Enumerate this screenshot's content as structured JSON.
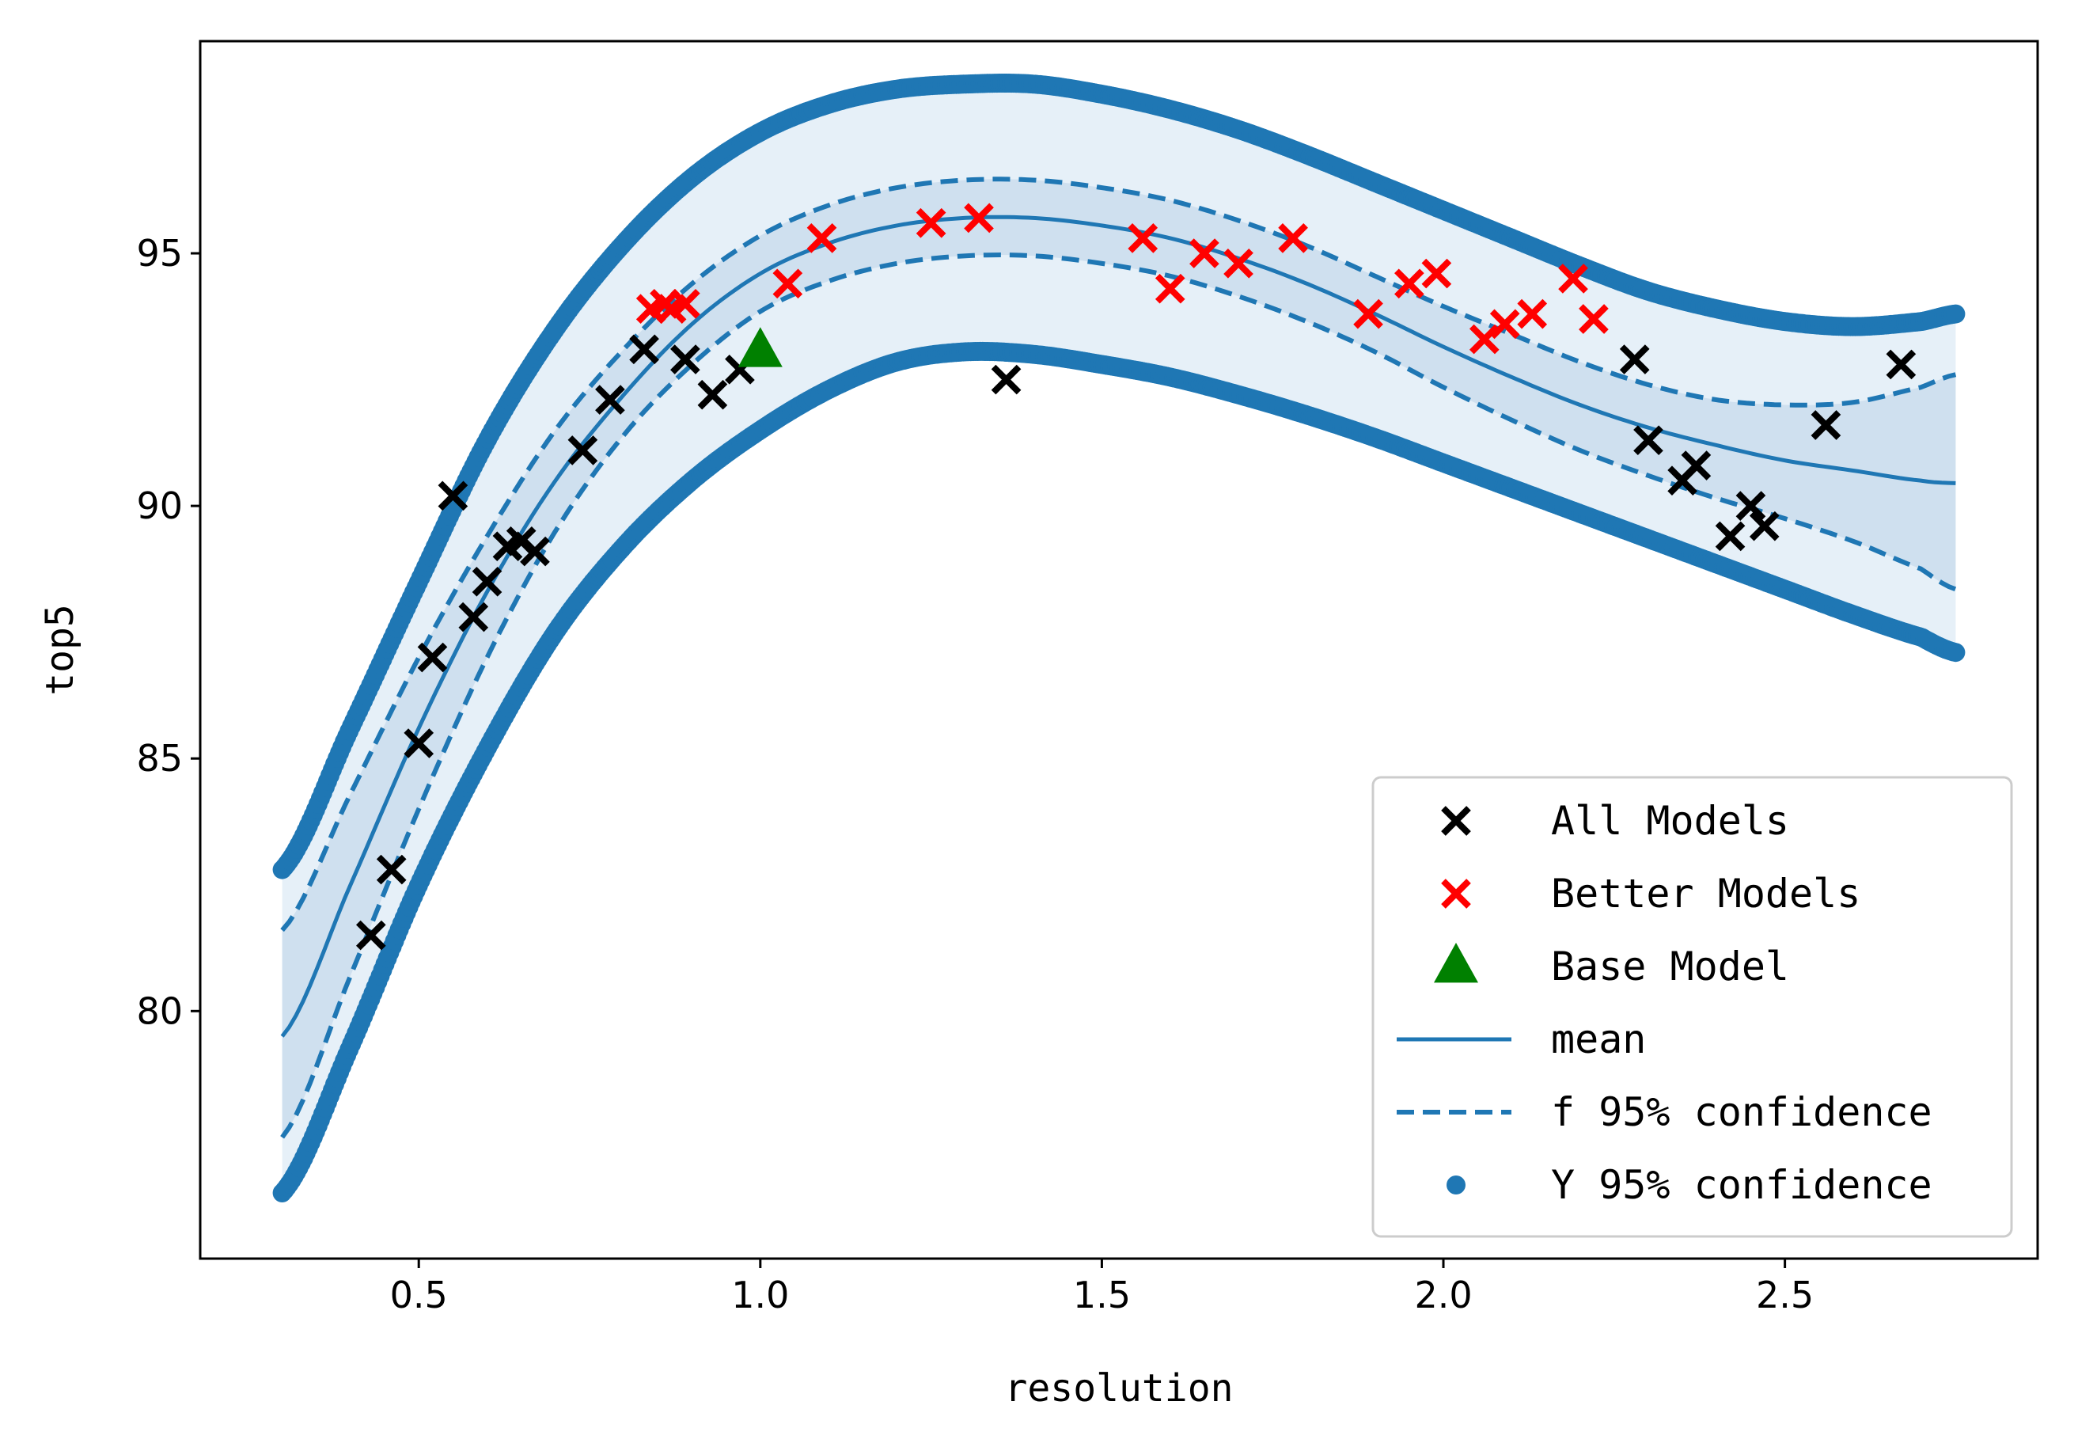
{
  "chart_data": {
    "type": "scatter",
    "title": "",
    "xlabel": "resolution",
    "ylabel": "top5",
    "xlim": [
      0.18,
      2.87
    ],
    "ylim": [
      75.1,
      99.2
    ],
    "xticks": [
      0.5,
      1.0,
      1.5,
      2.0,
      2.5
    ],
    "xtick_labels": [
      "0.5",
      "1.0",
      "1.5",
      "2.0",
      "2.5"
    ],
    "yticks": [
      80,
      85,
      90,
      95
    ],
    "ytick_labels": [
      "80",
      "85",
      "90",
      "95"
    ],
    "grid": false,
    "legend_position": "lower-right",
    "colors": {
      "all": "#000000",
      "better": "#ff0000",
      "base": "#008000",
      "curve": "#1f77b4",
      "band_outer": "#e6f0f8",
      "band_inner": "#cfe0ef"
    },
    "legend": [
      {
        "key": "all",
        "label": "All Models",
        "marker": "x"
      },
      {
        "key": "better",
        "label": "Better Models",
        "marker": "x"
      },
      {
        "key": "base",
        "label": "Base Model",
        "marker": "triangle"
      },
      {
        "key": "mean",
        "label": "mean",
        "marker": "line"
      },
      {
        "key": "f95",
        "label": "f 95% confidence",
        "marker": "dashed"
      },
      {
        "key": "y95",
        "label": "Y 95% confidence",
        "marker": "dot"
      }
    ],
    "curves": {
      "x": [
        0.3,
        0.4,
        0.5,
        0.6,
        0.7,
        0.8,
        0.9,
        1.0,
        1.1,
        1.2,
        1.3,
        1.4,
        1.5,
        1.6,
        1.7,
        1.8,
        1.9,
        2.0,
        2.1,
        2.2,
        2.3,
        2.4,
        2.5,
        2.6,
        2.7,
        2.75
      ],
      "mean": [
        79.5,
        82.5,
        85.6,
        88.3,
        90.5,
        92.2,
        93.6,
        94.6,
        95.2,
        95.55,
        95.7,
        95.7,
        95.55,
        95.3,
        94.9,
        94.4,
        93.8,
        93.15,
        92.55,
        92.0,
        91.55,
        91.2,
        90.9,
        90.7,
        90.5,
        90.45
      ],
      "f_upper": [
        81.6,
        84.3,
        87.0,
        89.4,
        91.5,
        93.1,
        94.4,
        95.35,
        95.95,
        96.3,
        96.45,
        96.45,
        96.3,
        96.05,
        95.65,
        95.15,
        94.55,
        93.95,
        93.4,
        92.85,
        92.4,
        92.1,
        92.0,
        92.05,
        92.35,
        92.6
      ],
      "f_lower": [
        77.5,
        80.7,
        84.0,
        87.0,
        89.5,
        91.4,
        92.8,
        93.85,
        94.45,
        94.8,
        94.95,
        94.95,
        94.8,
        94.55,
        94.15,
        93.65,
        93.05,
        92.35,
        91.7,
        91.1,
        90.6,
        90.15,
        89.75,
        89.3,
        88.75,
        88.35
      ],
      "y_upper": [
        82.8,
        85.6,
        88.5,
        91.3,
        93.5,
        95.2,
        96.5,
        97.4,
        97.95,
        98.25,
        98.35,
        98.35,
        98.15,
        97.85,
        97.45,
        96.95,
        96.4,
        95.85,
        95.3,
        94.75,
        94.25,
        93.9,
        93.65,
        93.55,
        93.65,
        93.8
      ],
      "y_lower": [
        76.4,
        79.3,
        82.5,
        85.2,
        87.5,
        89.2,
        90.5,
        91.5,
        92.3,
        92.85,
        93.05,
        93.0,
        92.8,
        92.55,
        92.2,
        91.8,
        91.35,
        90.85,
        90.35,
        89.85,
        89.35,
        88.85,
        88.35,
        87.85,
        87.4,
        87.1
      ]
    },
    "series": [
      {
        "name": "All Models",
        "x": [
          0.43,
          0.46,
          0.5,
          0.52,
          0.55,
          0.58,
          0.6,
          0.63,
          0.65,
          0.67,
          0.74,
          0.78,
          0.83,
          0.89,
          0.93,
          0.97,
          1.36,
          2.28,
          2.3,
          2.35,
          2.37,
          2.42,
          2.45,
          2.47,
          2.56,
          2.67
        ],
        "y": [
          81.5,
          82.8,
          85.3,
          87.0,
          90.2,
          87.8,
          88.5,
          89.2,
          89.3,
          89.1,
          91.1,
          92.1,
          93.1,
          92.9,
          92.2,
          92.7,
          92.5,
          92.9,
          91.3,
          90.5,
          90.8,
          89.4,
          90.0,
          89.6,
          91.6,
          92.8
        ]
      },
      {
        "name": "Better Models",
        "x": [
          0.84,
          0.86,
          0.87,
          0.89,
          1.04,
          1.09,
          1.25,
          1.32,
          1.56,
          1.6,
          1.65,
          1.7,
          1.78,
          1.89,
          1.95,
          1.99,
          2.06,
          2.09,
          2.13,
          2.19,
          2.22
        ],
        "y": [
          93.9,
          94.0,
          93.9,
          94.0,
          94.4,
          95.3,
          95.6,
          95.7,
          95.3,
          94.3,
          95.0,
          94.8,
          95.3,
          93.8,
          94.4,
          94.6,
          93.3,
          93.6,
          93.8,
          94.5,
          93.7
        ]
      },
      {
        "name": "Base Model",
        "x": [
          1.0
        ],
        "y": [
          93.1
        ]
      }
    ]
  }
}
